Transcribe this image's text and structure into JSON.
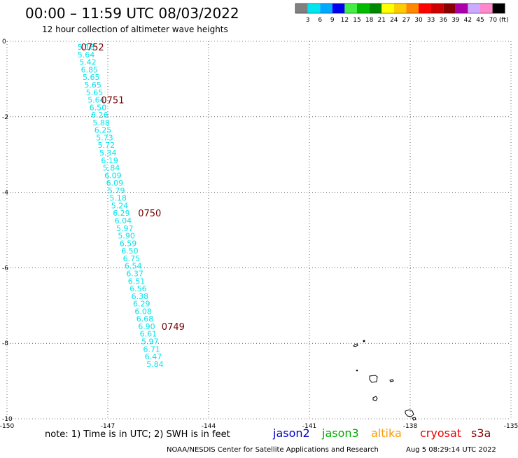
{
  "header": {
    "title": "00:00 – 11:59 UTC 08/03/2022",
    "subtitle": "12 hour collection of altimeter wave heights"
  },
  "color_scale": {
    "labels": [
      "3",
      "6",
      "9",
      "12",
      "15",
      "18",
      "21",
      "24",
      "27",
      "30",
      "33",
      "36",
      "39",
      "42",
      "45",
      "70 (ft)"
    ],
    "colors": [
      "#808080",
      "#00e5ee",
      "#00aaff",
      "#0000ee",
      "#44ee44",
      "#00bb00",
      "#008800",
      "#ffff00",
      "#ffcc00",
      "#ff8800",
      "#ff0000",
      "#cc0000",
      "#880000",
      "#aa00aa",
      "#ccaaff",
      "#ff88cc",
      "#000000"
    ]
  },
  "chart_data": {
    "type": "scatter",
    "title": "00:00 – 11:59 UTC 08/03/2022",
    "subtitle": "12 hour collection of altimeter wave heights",
    "xlabel": "",
    "ylabel": "",
    "xlim": [
      -150,
      -135
    ],
    "ylim": [
      -10,
      0
    ],
    "x_ticks": [
      -150,
      -147,
      -144,
      -141,
      -138,
      -135
    ],
    "y_ticks": [
      0,
      -2,
      -4,
      -6,
      -8,
      -10
    ],
    "grid": true,
    "value_unit": "ft",
    "series": [
      {
        "name": "s3a",
        "color": "#00e5ee",
        "points": [
          {
            "x": -147.9,
            "y": -0.15,
            "value": "5.18"
          },
          {
            "x": -147.9,
            "y": -0.35,
            "value": "5.64"
          },
          {
            "x": -147.85,
            "y": -0.55,
            "value": "5.42"
          },
          {
            "x": -147.8,
            "y": -0.75,
            "value": "6.85"
          },
          {
            "x": -147.75,
            "y": -0.95,
            "value": "5.65"
          },
          {
            "x": -147.7,
            "y": -1.15,
            "value": "5.65"
          },
          {
            "x": -147.65,
            "y": -1.35,
            "value": "5.65"
          },
          {
            "x": -147.6,
            "y": -1.55,
            "value": "5.64"
          },
          {
            "x": -147.55,
            "y": -1.75,
            "value": "6.50"
          },
          {
            "x": -147.5,
            "y": -1.95,
            "value": "6.26"
          },
          {
            "x": -147.45,
            "y": -2.15,
            "value": "5.88"
          },
          {
            "x": -147.4,
            "y": -2.35,
            "value": "6.25"
          },
          {
            "x": -147.35,
            "y": -2.55,
            "value": "5.73"
          },
          {
            "x": -147.3,
            "y": -2.75,
            "value": "5.72"
          },
          {
            "x": -147.25,
            "y": -2.95,
            "value": "5.34"
          },
          {
            "x": -147.2,
            "y": -3.15,
            "value": "6.19"
          },
          {
            "x": -147.15,
            "y": -3.35,
            "value": "5.84"
          },
          {
            "x": -147.1,
            "y": -3.55,
            "value": "6.09"
          },
          {
            "x": -147.05,
            "y": -3.75,
            "value": "6.09"
          },
          {
            "x": -147.0,
            "y": -3.95,
            "value": "5.79"
          },
          {
            "x": -146.95,
            "y": -4.15,
            "value": "5.18"
          },
          {
            "x": -146.9,
            "y": -4.35,
            "value": "5.24"
          },
          {
            "x": -146.85,
            "y": -4.55,
            "value": "6.29"
          },
          {
            "x": -146.8,
            "y": -4.75,
            "value": "6.04"
          },
          {
            "x": -146.75,
            "y": -4.95,
            "value": "5.97"
          },
          {
            "x": -146.7,
            "y": -5.15,
            "value": "5.90"
          },
          {
            "x": -146.65,
            "y": -5.35,
            "value": "6.59"
          },
          {
            "x": -146.6,
            "y": -5.55,
            "value": "6.50"
          },
          {
            "x": -146.55,
            "y": -5.75,
            "value": "6.75"
          },
          {
            "x": -146.5,
            "y": -5.95,
            "value": "6.54"
          },
          {
            "x": -146.45,
            "y": -6.15,
            "value": "6.37"
          },
          {
            "x": -146.4,
            "y": -6.35,
            "value": "6.51"
          },
          {
            "x": -146.35,
            "y": -6.55,
            "value": "6.56"
          },
          {
            "x": -146.3,
            "y": -6.75,
            "value": "6.38"
          },
          {
            "x": -146.25,
            "y": -6.95,
            "value": "6.29"
          },
          {
            "x": -146.2,
            "y": -7.15,
            "value": "6.08"
          },
          {
            "x": -146.15,
            "y": -7.35,
            "value": "6.68"
          },
          {
            "x": -146.1,
            "y": -7.55,
            "value": "6.90"
          },
          {
            "x": -146.05,
            "y": -7.75,
            "value": "6.61"
          },
          {
            "x": -146.0,
            "y": -7.95,
            "value": "5.97"
          },
          {
            "x": -145.95,
            "y": -8.15,
            "value": "6.71"
          },
          {
            "x": -145.9,
            "y": -8.35,
            "value": "6.47"
          },
          {
            "x": -145.85,
            "y": -8.55,
            "value": "5.84"
          }
        ]
      }
    ],
    "annotations": [
      {
        "text": "0752",
        "x": -147.8,
        "y": -0.15
      },
      {
        "text": "0751",
        "x": -147.2,
        "y": -1.55
      },
      {
        "text": "0750",
        "x": -146.1,
        "y": -4.55
      },
      {
        "text": "0749",
        "x": -145.4,
        "y": -7.55
      }
    ]
  },
  "footer": {
    "note": "note: 1) Time is in UTC; 2) SWH is in feet",
    "satellites": [
      {
        "name": "jason2",
        "color": "#0000cc"
      },
      {
        "name": "jason3",
        "color": "#00aa00"
      },
      {
        "name": "altika",
        "color": "#ff9900"
      },
      {
        "name": "cryosat",
        "color": "#ee0000"
      },
      {
        "name": "s3a",
        "color": "#880000"
      }
    ],
    "credit": "NOAA/NESDIS Center for Satellite Applications and Research",
    "timestamp": "Aug  5 08:29:14 UTC 2022"
  }
}
